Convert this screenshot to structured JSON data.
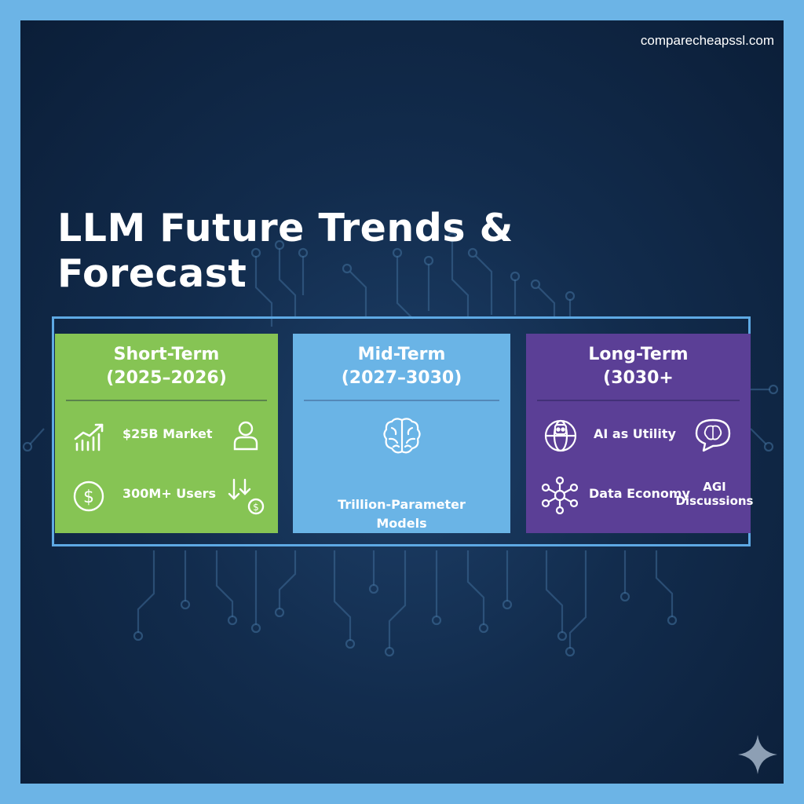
{
  "site": "comparecheapssl.com",
  "title_line1": "LLM Future Trends &",
  "title_line2": "Forecast",
  "cards": [
    {
      "title_line1": "Short-Term",
      "title_line2": "(2025–2026)",
      "color": "#86c454",
      "items": [
        {
          "label": "$25B Market",
          "icon": "growth-chart-icon",
          "side_icon": "user-icon"
        },
        {
          "label": "300M+ Users",
          "icon": "dollar-coin-icon",
          "side_icon": "down-arrows-coin-icon"
        }
      ]
    },
    {
      "title_line1": "Mid-Term",
      "title_line2": "(2027–3030)",
      "color": "#6ab4e6",
      "items": [
        {
          "label_line1": "Trillion-Parameter",
          "label_line2": "Models",
          "icon": "brain-icon"
        }
      ]
    },
    {
      "title_line1": "Long-Term",
      "title_line2": "(3030+",
      "color": "#5b3f96",
      "items": [
        {
          "label": "AI as Utility",
          "icon": "globe-robot-icon",
          "side_icon": "speech-brain-icon"
        },
        {
          "label": "Data Economy",
          "icon": "network-icon",
          "side_label_line1": "AGI",
          "side_label_line2": "Discussions"
        }
      ]
    }
  ]
}
